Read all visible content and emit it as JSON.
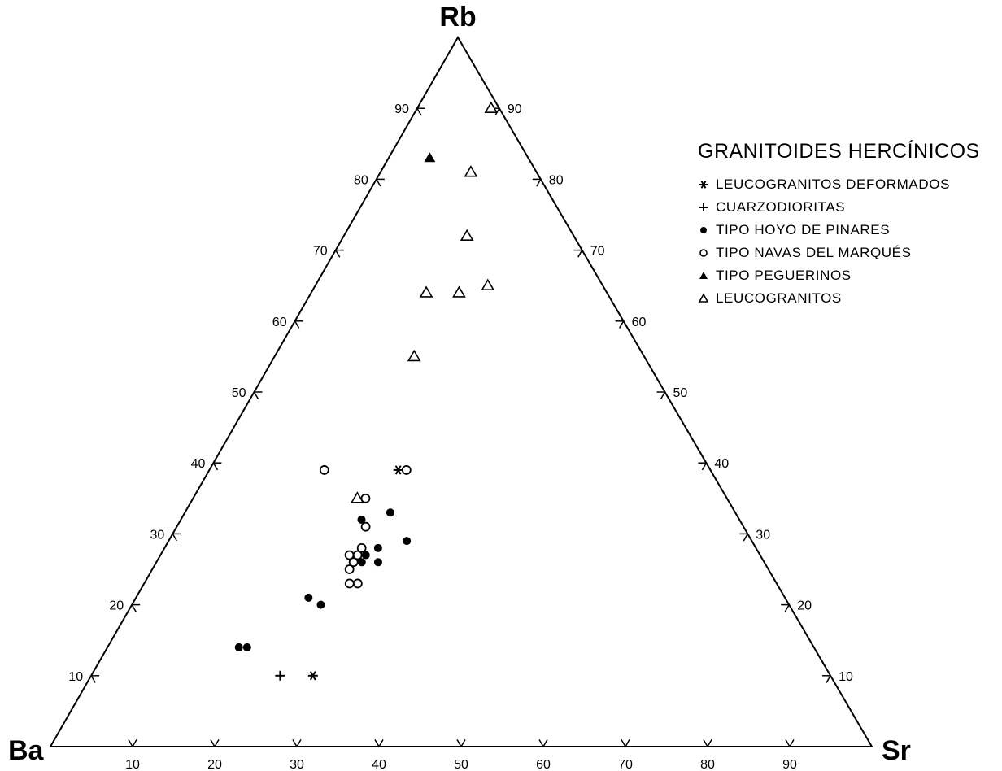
{
  "chart_data": {
    "type": "ternary-scatter",
    "vertices": {
      "left": "Ba",
      "top": "Rb",
      "right": "Sr"
    },
    "axes": {
      "Ba": {
        "ticks": [
          10,
          20,
          30,
          40,
          50,
          60,
          70,
          80,
          90
        ]
      },
      "Rb": {
        "ticks": [
          10,
          20,
          30,
          40,
          50,
          60,
          70,
          80,
          90
        ]
      },
      "Sr": {
        "ticks": [
          10,
          20,
          30,
          40,
          50,
          60,
          70,
          80,
          90
        ]
      }
    },
    "legend_title": "GRANITOIDES HERCÍNICOS",
    "series": [
      {
        "name": "LEUCOGRANITOS DEFORMADOS",
        "marker": "asterisk",
        "points": [
          {
            "Ba": 38,
            "Rb": 39,
            "Sr": 23
          },
          {
            "Ba": 63,
            "Rb": 10,
            "Sr": 27
          }
        ]
      },
      {
        "name": "CUARZODIORITAS",
        "marker": "plus",
        "points": [
          {
            "Ba": 67,
            "Rb": 10,
            "Sr": 23
          }
        ]
      },
      {
        "name": "TIPO HOYO DE PINARES",
        "marker": "filled-circle",
        "points": [
          {
            "Ba": 46,
            "Rb": 32,
            "Sr": 22
          },
          {
            "Ba": 46,
            "Rb": 28,
            "Sr": 26
          },
          {
            "Ba": 47,
            "Rb": 26,
            "Sr": 27
          },
          {
            "Ba": 48,
            "Rb": 27,
            "Sr": 25
          },
          {
            "Ba": 49,
            "Rb": 27,
            "Sr": 24
          },
          {
            "Ba": 49,
            "Rb": 26,
            "Sr": 25
          },
          {
            "Ba": 58,
            "Rb": 21,
            "Sr": 21
          },
          {
            "Ba": 57,
            "Rb": 20,
            "Sr": 23
          },
          {
            "Ba": 42,
            "Rb": 33,
            "Sr": 25
          },
          {
            "Ba": 42,
            "Rb": 29,
            "Sr": 29
          },
          {
            "Ba": 70,
            "Rb": 14,
            "Sr": 16
          },
          {
            "Ba": 69,
            "Rb": 14,
            "Sr": 17
          }
        ]
      },
      {
        "name": "TIPO NAVAS DEL MARQUÉS",
        "marker": "open-circle",
        "points": [
          {
            "Ba": 47,
            "Rb": 39,
            "Sr": 14
          },
          {
            "Ba": 37,
            "Rb": 39,
            "Sr": 24
          },
          {
            "Ba": 44,
            "Rb": 35,
            "Sr": 21
          },
          {
            "Ba": 46,
            "Rb": 31,
            "Sr": 23
          },
          {
            "Ba": 48,
            "Rb": 28,
            "Sr": 24
          },
          {
            "Ba": 49,
            "Rb": 27,
            "Sr": 24
          },
          {
            "Ba": 50,
            "Rb": 27,
            "Sr": 23
          },
          {
            "Ba": 50,
            "Rb": 26,
            "Sr": 24
          },
          {
            "Ba": 51,
            "Rb": 25,
            "Sr": 24
          },
          {
            "Ba": 51,
            "Rb": 23,
            "Sr": 26
          },
          {
            "Ba": 52,
            "Rb": 23,
            "Sr": 25
          }
        ]
      },
      {
        "name": "TIPO PEGUERINOS",
        "marker": "filled-triangle",
        "points": [
          {
            "Ba": 12,
            "Rb": 83,
            "Sr": 5
          }
        ]
      },
      {
        "name": "LEUCOGRANITOS",
        "marker": "open-triangle",
        "points": [
          {
            "Ba": 1,
            "Rb": 90,
            "Sr": 9
          },
          {
            "Ba": 8,
            "Rb": 81,
            "Sr": 11
          },
          {
            "Ba": 13,
            "Rb": 72,
            "Sr": 15
          },
          {
            "Ba": 14,
            "Rb": 65,
            "Sr": 21
          },
          {
            "Ba": 18,
            "Rb": 64,
            "Sr": 18
          },
          {
            "Ba": 22,
            "Rb": 64,
            "Sr": 14
          },
          {
            "Ba": 28,
            "Rb": 55,
            "Sr": 17
          },
          {
            "Ba": 45,
            "Rb": 35,
            "Sr": 20
          }
        ]
      }
    ]
  }
}
